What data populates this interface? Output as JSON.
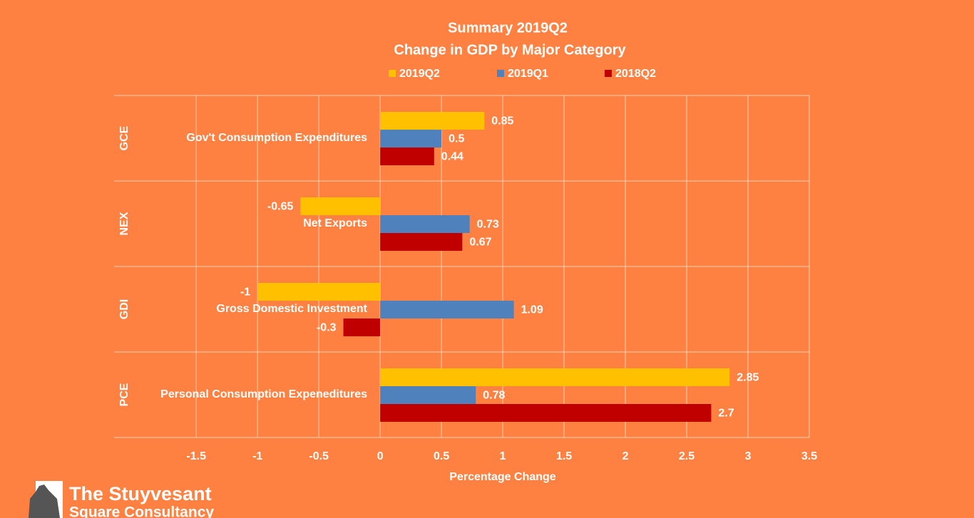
{
  "chart_data": {
    "type": "bar",
    "orientation": "horizontal",
    "title": "Summary 2019Q2",
    "subtitle": "Change in GDP by Major Category",
    "categories": [
      "GCE",
      "NEX",
      "GDI",
      "PCE"
    ],
    "category_names": [
      "Gov't Consumption Expenditures",
      "Net Exports",
      "Gross Domestic Investment",
      "Personal Consumption Expeneditures"
    ],
    "series": [
      {
        "name": "2019Q2",
        "color": "#ffc000",
        "values": [
          0.85,
          -0.65,
          -1,
          2.85
        ]
      },
      {
        "name": "2019Q1",
        "color": "#4f81bd",
        "values": [
          0.5,
          0.73,
          1.09,
          0.78
        ]
      },
      {
        "name": "2018Q2",
        "color": "#c00000",
        "values": [
          0.44,
          0.67,
          -0.3,
          2.7
        ]
      }
    ],
    "x_label": "Percentage Change",
    "xlim": [
      -2.17,
      3.5
    ],
    "xticks": [
      -1.5,
      -1,
      -0.5,
      0,
      0.5,
      1,
      1.5,
      2,
      2.5,
      3,
      3.5
    ],
    "grid": true,
    "legend": "top"
  },
  "branding": {
    "line1": "The Stuyvesant",
    "line2": "Square  Consultancy"
  }
}
